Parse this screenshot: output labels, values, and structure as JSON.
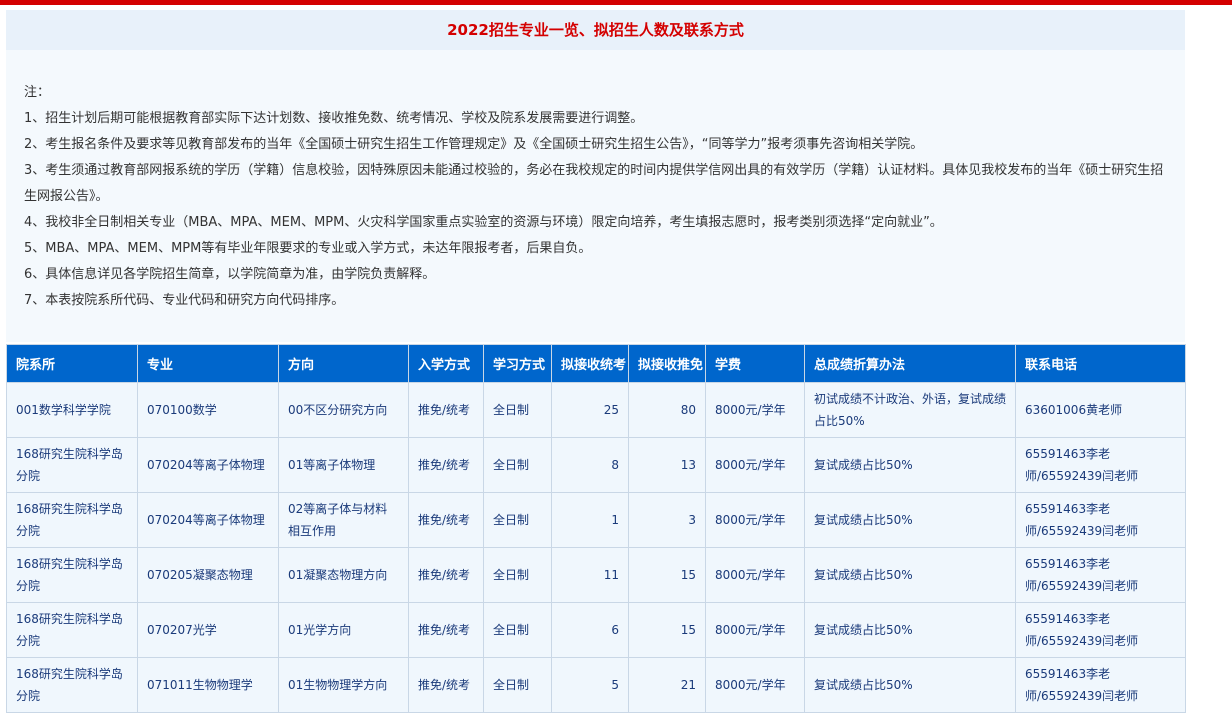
{
  "title": "2022招生专业一览、拟招生人数及联系方式",
  "notes": [
    "注：",
    "1、招生计划后期可能根据教育部实际下达计划数、接收推免数、统考情况、学校及院系发展需要进行调整。",
    "2、考生报名条件及要求等见教育部发布的当年《全国硕士研究生招生工作管理规定》及《全国硕士研究生招生公告》，“同等学力”报考须事先咨询相关学院。",
    "3、考生须通过教育部网报系统的学历（学籍）信息校验，因特殊原因未能通过校验的，务必在我校规定的时间内提供学信网出具的有效学历（学籍）认证材料。具体见我校发布的当年《硕士研究生招生网报公告》。",
    "4、我校非全日制相关专业（MBA、MPA、MEM、MPM、火灾科学国家重点实验室的资源与环境）限定向培养，考生填报志愿时，报考类别须选择“定向就业”。",
    "5、MBA、MPA、MEM、MPM等有毕业年限要求的专业或入学方式，未达年限报考者，后果自负。",
    "6、具体信息详见各学院招生简章，以学院简章为准，由学院负责解释。",
    "7、本表按院系所代码、专业代码和研究方向代码排序。"
  ],
  "table": {
    "headers": [
      "院系所",
      "专业",
      "方向",
      "入学方式",
      "学习方式",
      "拟接收统考",
      "拟接收推免",
      "学费",
      "总成绩折算办法",
      "联系电话"
    ],
    "rows": [
      [
        "001数学科学学院",
        "070100数学",
        "00不区分研究方向",
        "推免/统考",
        "全日制",
        "25",
        "80",
        "8000元/学年",
        "初试成绩不计政治、外语，复试成绩占比50%",
        "63601006黄老师"
      ],
      [
        "168研究生院科学岛分院",
        "070204等离子体物理",
        "01等离子体物理",
        "推免/统考",
        "全日制",
        "8",
        "13",
        "8000元/学年",
        "复试成绩占比50%",
        "65591463李老师/65592439闫老师"
      ],
      [
        "168研究生院科学岛分院",
        "070204等离子体物理",
        "02等离子体与材料相互作用",
        "推免/统考",
        "全日制",
        "1",
        "3",
        "8000元/学年",
        "复试成绩占比50%",
        "65591463李老师/65592439闫老师"
      ],
      [
        "168研究生院科学岛分院",
        "070205凝聚态物理",
        "01凝聚态物理方向",
        "推免/统考",
        "全日制",
        "11",
        "15",
        "8000元/学年",
        "复试成绩占比50%",
        "65591463李老师/65592439闫老师"
      ],
      [
        "168研究生院科学岛分院",
        "070207光学",
        "01光学方向",
        "推免/统考",
        "全日制",
        "6",
        "15",
        "8000元/学年",
        "复试成绩占比50%",
        "65591463李老师/65592439闫老师"
      ],
      [
        "168研究生院科学岛分院",
        "071011生物物理学",
        "01生物物理学方向",
        "推免/统考",
        "全日制",
        "5",
        "21",
        "8000元/学年",
        "复试成绩占比50%",
        "65591463李老师/65592439闫老师"
      ]
    ]
  }
}
